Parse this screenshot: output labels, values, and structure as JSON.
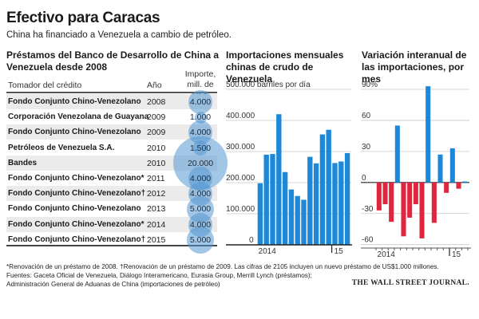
{
  "header": {
    "title": "Efectivo para Caracas",
    "subtitle": "China ha financiado a Venezuela a cambio de petróleo."
  },
  "loans": {
    "title": "Préstamos del Banco de Desarrollo de China a Venezuela desde 2008",
    "col_borrower": "Tomador del crédito",
    "col_year": "Año",
    "col_amount_line1": "Importe,",
    "col_amount_line2": "mill. de US$",
    "rows": [
      {
        "borrower": "Fondo Conjunto Chino-Venezolano",
        "year": "2008",
        "amount": "4.000",
        "value": 4000
      },
      {
        "borrower": "Corporación Venezolana de Guayana",
        "year": "2009",
        "amount": "1.000",
        "value": 1000
      },
      {
        "borrower": "Fondo Conjunto Chino-Venezolano",
        "year": "2009",
        "amount": "4.000",
        "value": 4000
      },
      {
        "borrower": "Petróleos de Venezuela S.A.",
        "year": "2010",
        "amount": "1.500",
        "value": 1500
      },
      {
        "borrower": "Bandes",
        "year": "2010",
        "amount": "20.000",
        "value": 20000
      },
      {
        "borrower": "Fondo Conjunto Chino-Venezolano*",
        "year": "2011",
        "amount": "4.000",
        "value": 4000
      },
      {
        "borrower": "Fondo Conjunto Chino-Venezolano†",
        "year": "2012",
        "amount": "4.000",
        "value": 4000
      },
      {
        "borrower": "Fondo Conjunto Chino-Venezolano",
        "year": "2013",
        "amount": "5.000",
        "value": 5000
      },
      {
        "borrower": "Fondo Conjunto Chino-Venezolano*",
        "year": "2014",
        "amount": "4.000",
        "value": 4000
      },
      {
        "borrower": "Fondo Conjunto Chino-Venezolano†",
        "year": "2015",
        "amount": "5.000",
        "value": 5000
      }
    ],
    "bubble_color": "#5698d2"
  },
  "chart_data": [
    {
      "type": "bar",
      "title": "Importaciones mensuales chinas de crudo de Venezuela",
      "ylabel": "barriles por día",
      "ylim": [
        0,
        500000
      ],
      "yticks": [
        0,
        100000,
        200000,
        300000,
        400000,
        500000
      ],
      "ytick_labels": [
        "0",
        "100.000",
        "200.000",
        "300.000",
        "400.000",
        "500.000 barriles por día"
      ],
      "x_labels": [
        {
          "index": 1,
          "label": "2014"
        },
        {
          "index": 12,
          "label": "15",
          "tick": true
        }
      ],
      "values": [
        198000,
        290000,
        292000,
        420000,
        234000,
        178000,
        157000,
        145000,
        283000,
        262000,
        355000,
        370000,
        263000,
        268000,
        295000
      ],
      "color": "#1e88d8",
      "grid": true
    },
    {
      "type": "bar",
      "title": "Variación interanual de las importaciones, por mes",
      "ylabel": "%",
      "ylim": [
        -60,
        90
      ],
      "yticks": [
        -60,
        -30,
        0,
        30,
        60,
        90
      ],
      "ytick_labels": [
        "-60",
        "-30",
        "0",
        "30",
        "60",
        "90%"
      ],
      "x_labels": [
        {
          "index": 1,
          "label": "2014"
        },
        {
          "index": 12,
          "label": "15",
          "tick": true
        }
      ],
      "values": [
        -27,
        -21,
        -38,
        55,
        -52,
        -34,
        -21,
        -54,
        93,
        -39,
        27,
        -10,
        33,
        -6,
        1
      ],
      "positive_color": "#1e88d8",
      "negative_color": "#e0263f",
      "grid": true
    }
  ],
  "footer": {
    "note": "*Renovación de un préstamo de 2008. †Renovación de un préstamo de 2009. Las cifras de 2105 incluyen un nuevo préstamo de US$1.000 millones.",
    "sources1": "Fuentes: Gaceta Oficial de Venezuela, Diálogo Interamericano, Eurasia Group, Merrill Lynch (préstamos);",
    "sources2": "Administración General de Aduanas de China (importaciones de petróleo)",
    "brand": "THE WALL STREET JOURNAL."
  }
}
